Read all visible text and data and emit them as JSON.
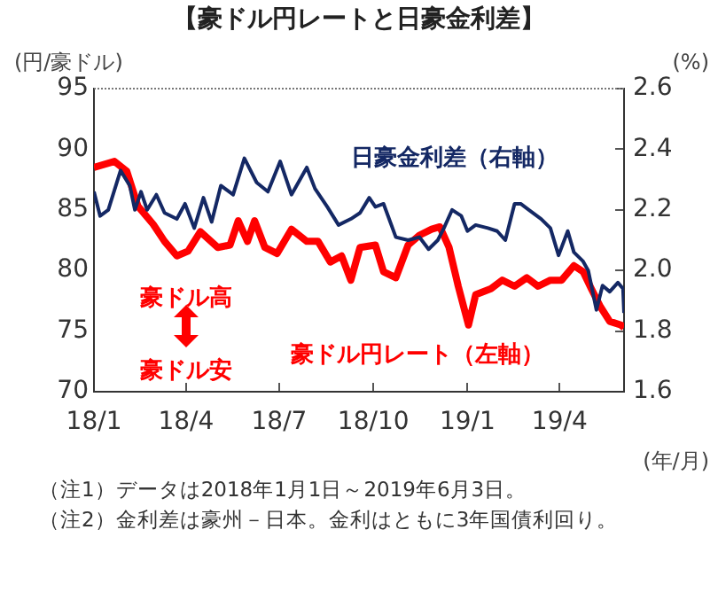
{
  "chart_data": {
    "type": "line",
    "title": "【豪ドル円レートと日豪金利差】",
    "ylabel": "(円/豪ドル)",
    "y2label": "(%)",
    "xlabel": "(年/月)",
    "xlim": [
      "2018-01-01",
      "2019-06-03"
    ],
    "xticks": [
      {
        "value": "2018-01-01",
        "label": "18/1"
      },
      {
        "value": "2018-04-01",
        "label": "18/4"
      },
      {
        "value": "2018-07-01",
        "label": "18/7"
      },
      {
        "value": "2018-10-01",
        "label": "18/10"
      },
      {
        "value": "2019-01-01",
        "label": "19/1"
      },
      {
        "value": "2019-04-01",
        "label": "19/4"
      }
    ],
    "ylim": [
      70,
      95
    ],
    "yticks": [
      70,
      75,
      80,
      85,
      90,
      95
    ],
    "y2lim": [
      1.6,
      2.6
    ],
    "y2ticks": [
      1.6,
      1.8,
      {
        "value": 2,
        "label": "2.0"
      },
      2.2,
      2.4,
      2.6
    ],
    "grid": false,
    "legend": false,
    "marker": "none",
    "line_style": "solid",
    "annotations": [
      "豪ドル高",
      "豪ドル安",
      "（注1）データは2018年1月1日～2019年6月3日。",
      "（注2）金利差は豪州－日本。金利はともに3年国債利回り。"
    ],
    "series": [
      {
        "name": "豪ドル円レート（左軸）",
        "color": "#ff0000",
        "x": [
          "2018-01-01",
          "2018-01-21",
          "2018-02-02",
          "2018-02-13",
          "2018-02-28",
          "2018-03-11",
          "2018-03-23",
          "2018-04-03",
          "2018-04-15",
          "2018-05-02",
          "2018-05-14",
          "2018-05-22",
          "2018-05-31",
          "2018-06-07",
          "2018-06-17",
          "2018-06-29",
          "2018-07-13",
          "2018-07-28",
          "2018-08-08",
          "2018-08-20",
          "2018-08-31",
          "2018-09-09",
          "2018-09-18",
          "2018-10-03",
          "2018-10-11",
          "2018-10-23",
          "2018-11-04",
          "2018-11-15",
          "2018-11-27",
          "2018-12-05",
          "2018-12-14",
          "2018-12-23",
          "2019-01-02",
          "2019-01-09",
          "2019-01-24",
          "2019-02-04",
          "2019-02-16",
          "2019-02-28",
          "2019-03-11",
          "2019-03-23",
          "2019-04-03",
          "2019-04-15",
          "2019-04-24",
          "2019-05-02",
          "2019-05-11",
          "2019-05-20",
          "2019-05-31",
          "2019-06-03"
        ],
        "values": [
          88.5,
          89.0,
          88.2,
          85.3,
          83.8,
          82.4,
          81.2,
          81.6,
          83.2,
          81.9,
          82.1,
          84.1,
          82.4,
          84.1,
          81.9,
          81.4,
          83.4,
          82.4,
          82.4,
          80.7,
          81.2,
          79.2,
          81.9,
          82.1,
          79.9,
          79.4,
          82.1,
          82.9,
          83.4,
          83.6,
          81.9,
          78.7,
          75.5,
          78.0,
          78.5,
          79.2,
          78.7,
          79.4,
          78.7,
          79.2,
          79.2,
          80.4,
          79.9,
          78.5,
          77.0,
          75.8,
          75.5,
          75.3
        ]
      },
      {
        "name": "日豪金利差（右軸）",
        "color": "#142864",
        "axis": "y2",
        "x": [
          "2018-01-01",
          "2018-01-07",
          "2018-01-15",
          "2018-01-27",
          "2018-02-05",
          "2018-02-10",
          "2018-02-16",
          "2018-02-22",
          "2018-03-03",
          "2018-03-11",
          "2018-03-23",
          "2018-03-31",
          "2018-04-09",
          "2018-04-18",
          "2018-04-26",
          "2018-05-05",
          "2018-05-17",
          "2018-05-28",
          "2018-06-09",
          "2018-06-20",
          "2018-07-02",
          "2018-07-13",
          "2018-07-28",
          "2018-08-05",
          "2018-08-17",
          "2018-08-28",
          "2018-09-09",
          "2018-09-18",
          "2018-09-27",
          "2018-10-03",
          "2018-10-11",
          "2018-10-23",
          "2018-11-04",
          "2018-11-15",
          "2018-11-24",
          "2018-12-03",
          "2018-12-09",
          "2018-12-17",
          "2018-12-26",
          "2019-01-01",
          "2019-01-09",
          "2019-01-21",
          "2019-01-30",
          "2019-02-07",
          "2019-02-16",
          "2019-02-22",
          "2019-03-02",
          "2019-03-14",
          "2019-03-23",
          "2019-03-31",
          "2019-04-09",
          "2019-04-15",
          "2019-04-24",
          "2019-04-29",
          "2019-05-07",
          "2019-05-13",
          "2019-05-20",
          "2019-05-28",
          "2019-06-02",
          "2019-06-03"
        ],
        "values": [
          2.26,
          2.18,
          2.2,
          2.33,
          2.28,
          2.2,
          2.26,
          2.2,
          2.25,
          2.19,
          2.17,
          2.22,
          2.14,
          2.24,
          2.16,
          2.28,
          2.25,
          2.37,
          2.29,
          2.26,
          2.36,
          2.25,
          2.34,
          2.27,
          2.21,
          2.15,
          2.17,
          2.19,
          2.24,
          2.21,
          2.22,
          2.11,
          2.1,
          2.11,
          2.07,
          2.1,
          2.14,
          2.2,
          2.18,
          2.13,
          2.15,
          2.14,
          2.13,
          2.1,
          2.22,
          2.22,
          2.2,
          2.17,
          2.14,
          2.05,
          2.13,
          2.06,
          2.03,
          2.0,
          1.87,
          1.95,
          1.93,
          1.96,
          1.94,
          1.86
        ]
      }
    ]
  }
}
